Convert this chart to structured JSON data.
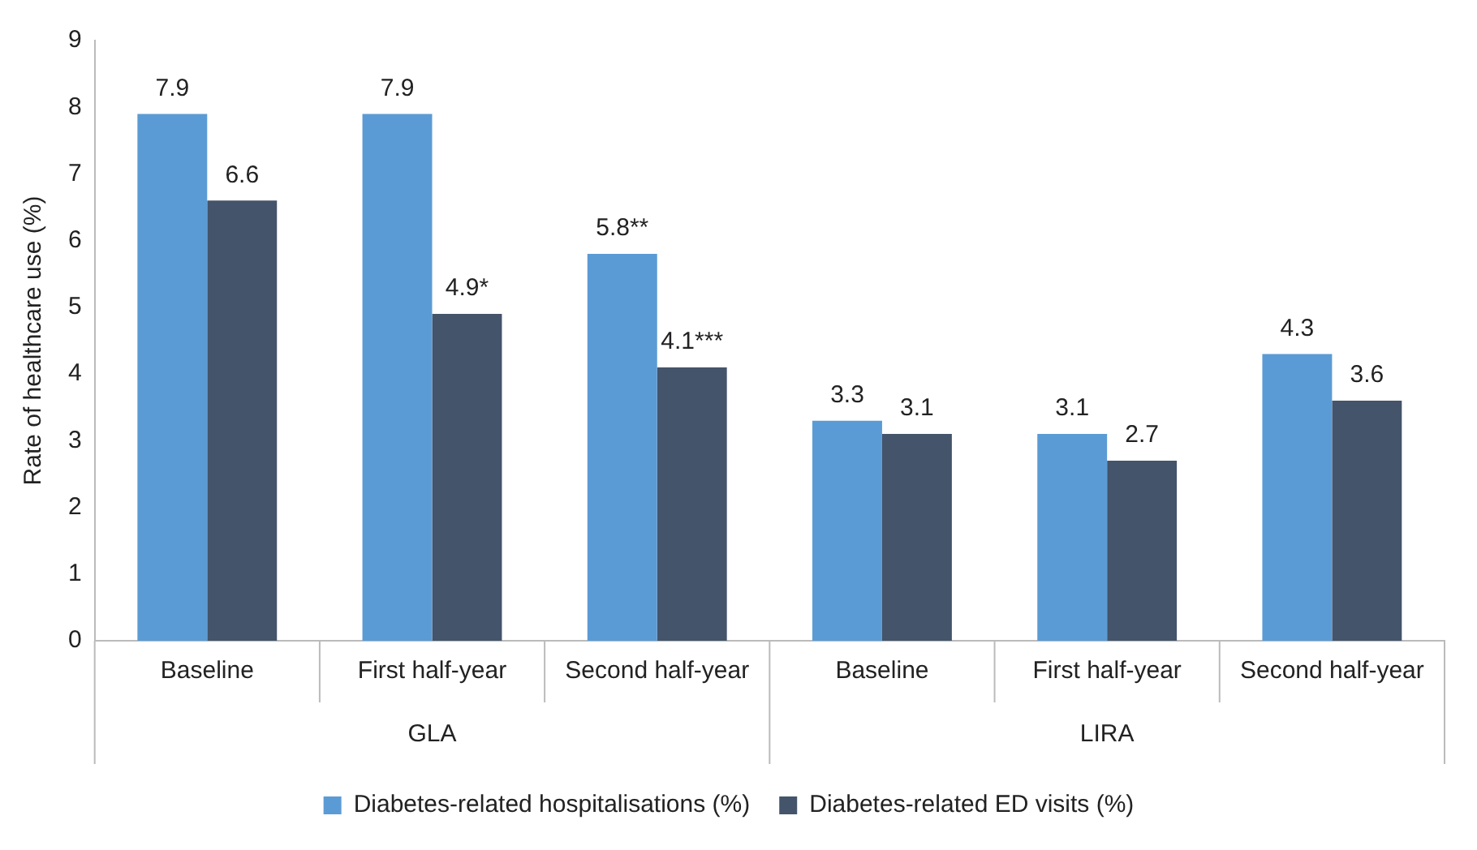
{
  "chart_data": {
    "type": "bar",
    "ylabel": "Rate of healthcare use (%)",
    "categories": [
      "Baseline",
      "First half-year",
      "Second half-year",
      "Baseline",
      "First half-year",
      "Second half-year"
    ],
    "series": [
      {
        "name": "Diabetes-related hospitalisations (%)",
        "color": "#5b9bd5",
        "values": [
          7.9,
          7.9,
          5.8,
          3.3,
          3.1,
          4.3
        ],
        "value_labels": [
          "7.9",
          "7.9",
          "5.8**",
          "3.3",
          "3.1",
          "4.3"
        ]
      },
      {
        "name": "Diabetes-related ED visits (%)",
        "color": "#44546a",
        "values": [
          6.6,
          4.9,
          4.1,
          3.1,
          2.7,
          3.6
        ],
        "value_labels": [
          "6.6",
          "4.9*",
          "4.1***",
          "3.1",
          "2.7",
          "3.6"
        ]
      }
    ],
    "annotations": [
      "GLA",
      "LIRA"
    ],
    "ylim": [
      0,
      9
    ],
    "yticks": [
      0,
      1,
      2,
      3,
      4,
      5,
      6,
      7,
      8,
      9
    ],
    "grid": false,
    "legend": "bottom"
  }
}
